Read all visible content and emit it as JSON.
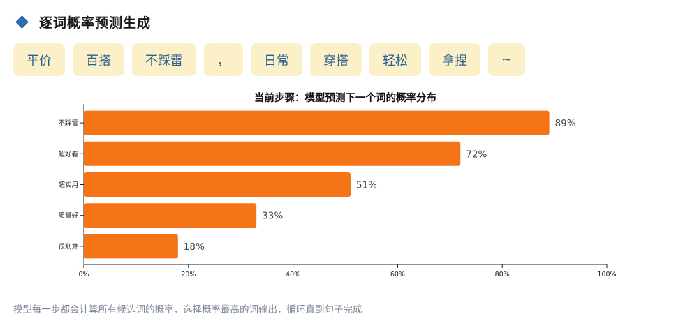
{
  "header": {
    "title": "逐词概率预测生成",
    "icon": "diamond-icon",
    "icon_color": "#2a6fb5"
  },
  "tokens": [
    "平价",
    "百搭",
    "不踩雷",
    "，",
    "日常",
    "穿搭",
    "轻松",
    "拿捏",
    "~"
  ],
  "token_bg_color": "#fbf0c8",
  "token_text_color": "#2a5f8f",
  "chart_data": {
    "type": "bar",
    "orientation": "horizontal",
    "title": "当前步骤：模型预测下一个词的概率分布",
    "categories": [
      "不踩雷",
      "超好看",
      "超实用",
      "质量好",
      "很划算"
    ],
    "values": [
      89,
      72,
      51,
      33,
      18
    ],
    "value_labels": [
      "89%",
      "72%",
      "51%",
      "33%",
      "18%"
    ],
    "xlim": [
      0,
      100
    ],
    "x_ticks": [
      0,
      20,
      40,
      60,
      80,
      100
    ],
    "x_tick_labels": [
      "0%",
      "20%",
      "40%",
      "60%",
      "80%",
      "100%"
    ],
    "bar_color": "#f57417",
    "grid": false
  },
  "footer": {
    "note": "模型每一步都会计算所有候选词的概率，选择概率最高的词输出，循环直到句子完成"
  }
}
